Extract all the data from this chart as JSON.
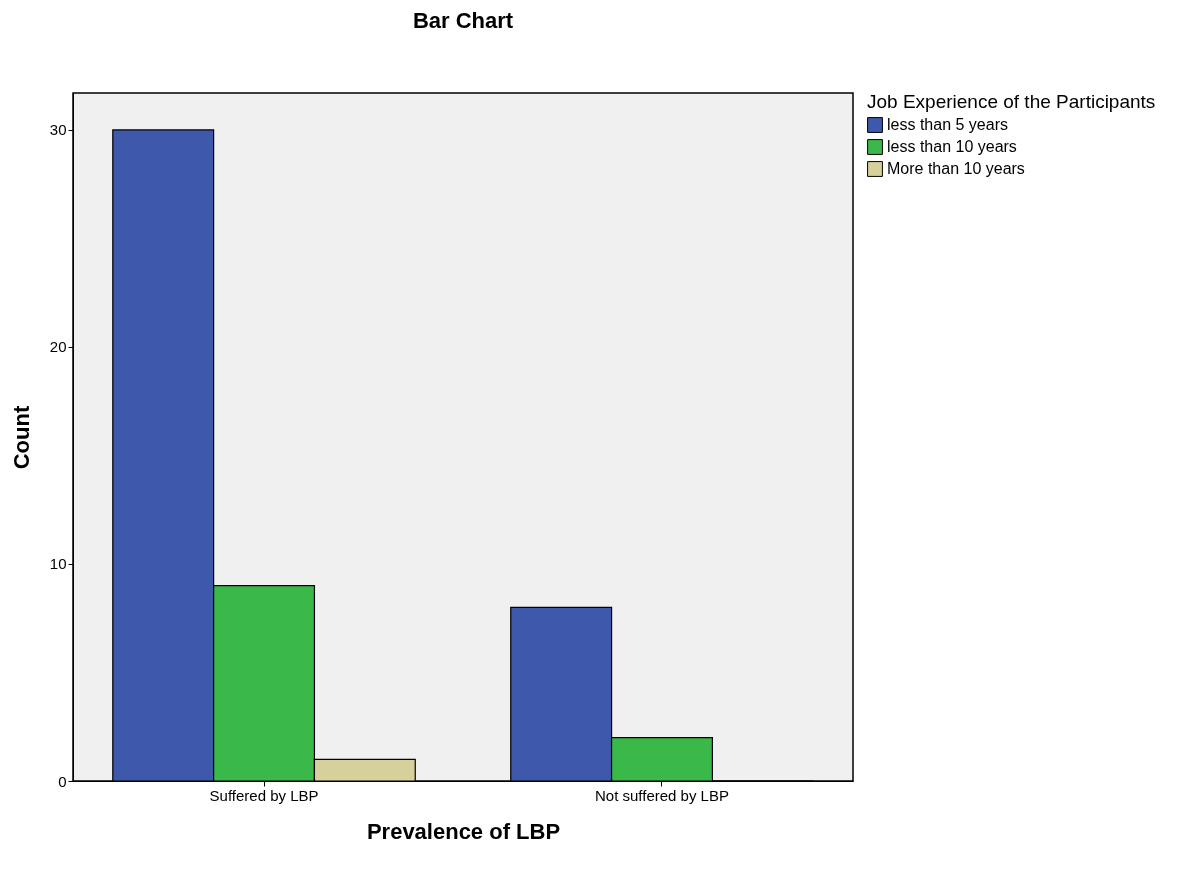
{
  "chart_data": {
    "type": "bar",
    "title": "Bar Chart",
    "xlabel": "Prevalence of LBP",
    "ylabel": "Count",
    "legend_title": "Job Experience of the Participants",
    "categories": [
      "Suffered by LBP",
      "Not suffered by LBP"
    ],
    "series": [
      {
        "name": "less than 5 years",
        "color": "#3e58ac",
        "values": [
          30,
          8
        ]
      },
      {
        "name": "less than 10 years",
        "color": "#3bb84a",
        "values": [
          9,
          2
        ]
      },
      {
        "name": "More than 10 years",
        "color": "#d6d19a",
        "values": [
          1,
          0
        ]
      }
    ],
    "ylim": [
      0,
      31.7
    ],
    "yticks": [
      0,
      10,
      20,
      30
    ],
    "grid": false,
    "legend": "top right"
  }
}
